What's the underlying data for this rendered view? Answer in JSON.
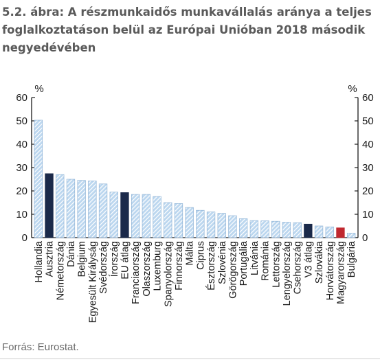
{
  "title": "5.2. ábra: A részmunkaidős munkavállalás aránya a teljes\nfoglalkoztatáson belül az Európai Unióban 2018 második\nnegyedévében",
  "source": "Forrás: Eurostat.",
  "chart_data": {
    "type": "bar",
    "title": "5.2. ábra: A részmunkaidős munkavállalás aránya a teljes foglalkoztatáson belül az Európai Unióban 2018 második negyedévében",
    "xlabel": "",
    "ylabel": "%",
    "y2label": "%",
    "ylim": [
      0,
      60
    ],
    "yticks": [
      0,
      10,
      20,
      30,
      40,
      50,
      60
    ],
    "grid": false,
    "legend": "none",
    "categories": [
      "Hollandia",
      "Ausztria",
      "Németország",
      "Dánia",
      "Belgium",
      "Egyesült Királyság",
      "Svédország",
      "Írország",
      "EU átlag",
      "Franciaország",
      "Olaszország",
      "Luxemburg",
      "Spanyolország",
      "Finnország",
      "Málta",
      "Ciprus",
      "Észtország",
      "Szlovénia",
      "Görögország",
      "Portugália",
      "Litvánia",
      "Románia",
      "Lettország",
      "Lengyelország",
      "Csehország",
      "V3 átlag",
      "Szlovákia",
      "Horvátország",
      "Magyarország",
      "Bulgária"
    ],
    "values": [
      50.3,
      27.4,
      27.0,
      25.0,
      24.5,
      24.3,
      23.0,
      19.5,
      19.3,
      18.5,
      18.5,
      17.6,
      15.0,
      14.6,
      12.9,
      11.7,
      11.0,
      10.4,
      9.4,
      8.1,
      7.3,
      7.2,
      7.0,
      6.6,
      6.4,
      5.8,
      5.0,
      4.6,
      4.2,
      1.9
    ],
    "highlights": {
      "Ausztria": "dark",
      "EU átlag": "dark",
      "V3 átlag": "dark",
      "Magyarország": "red"
    },
    "colors": {
      "bar": "#bcd7ef",
      "hatch": "#ffffff",
      "outline": "#8fb3d6",
      "dark": "#1b2a4a",
      "red": "#c0282f",
      "axis": "#1a1a1a"
    }
  }
}
